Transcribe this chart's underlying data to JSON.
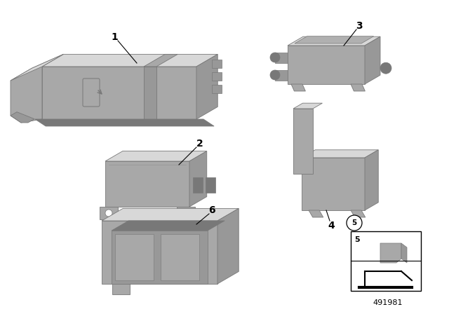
{
  "background_color": "#ffffff",
  "part_number": "491981",
  "gray_top": "#c8c8c8",
  "gray_front": "#b0b0b0",
  "gray_side": "#989898",
  "gray_dark": "#787878",
  "gray_light": "#d8d8d8",
  "gray_mid": "#a8a8a8",
  "label_fontsize": 10
}
